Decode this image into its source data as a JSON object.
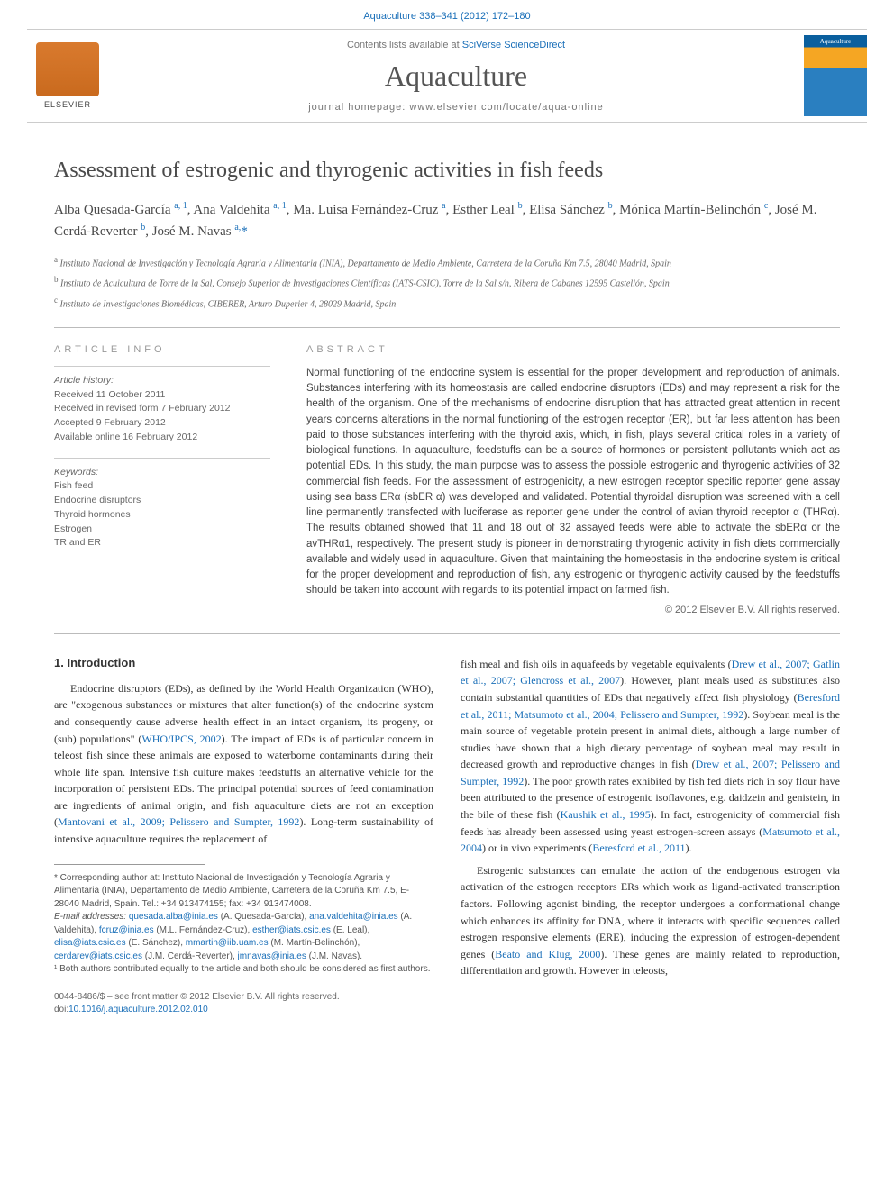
{
  "colors": {
    "link": "#1a6fb8",
    "text": "#333333",
    "muted": "#666666",
    "heading_gray": "#4a4a4a",
    "rule": "#bbbbbb",
    "background": "#ffffff",
    "elsevier_orange": "#d97a2e",
    "cover_blue": "#0a5f9e"
  },
  "page": {
    "citation": "Aquaculture 338–341 (2012) 172–180",
    "contents_prefix": "Contents lists available at ",
    "contents_link": "SciVerse ScienceDirect",
    "journal_name": "Aquaculture",
    "homepage_label": "journal homepage: www.elsevier.com/locate/aqua-online",
    "cover_label": "Aquaculture",
    "elsevier_label": "ELSEVIER"
  },
  "article": {
    "title": "Assessment of estrogenic and thyrogenic activities in fish feeds",
    "authors_html": "Alba Quesada-García <sup>a, 1</sup>, Ana Valdehita <sup>a, 1</sup>, Ma. Luisa Fernández-Cruz <sup>a</sup>, Esther Leal <sup>b</sup>, Elisa Sánchez <sup>b</sup>, Mónica Martín-Belinchón <sup>c</sup>, José M. Cerdá-Reverter <sup>b</sup>, José M. Navas <sup>a,</sup><span class='star'>*</span>",
    "affiliations": [
      {
        "sup": "a",
        "text": "Instituto Nacional de Investigación y Tecnología Agraria y Alimentaria (INIA), Departamento de Medio Ambiente, Carretera de la Coruña Km 7.5, 28040 Madrid, Spain"
      },
      {
        "sup": "b",
        "text": "Instituto de Acuicultura de Torre de la Sal, Consejo Superior de Investigaciones Científicas (IATS-CSIC), Torre de la Sal s/n, Ribera de Cabanes 12595 Castellón, Spain"
      },
      {
        "sup": "c",
        "text": "Instituto de Investigaciones Biomédicas, CIBERER, Arturo Duperier 4, 28029 Madrid, Spain"
      }
    ]
  },
  "info": {
    "heading": "ARTICLE INFO",
    "history_label": "Article history:",
    "history": [
      "Received 11 October 2011",
      "Received in revised form 7 February 2012",
      "Accepted 9 February 2012",
      "Available online 16 February 2012"
    ],
    "keywords_label": "Keywords:",
    "keywords": [
      "Fish feed",
      "Endocrine disruptors",
      "Thyroid hormones",
      "Estrogen",
      "TR and ER"
    ]
  },
  "abstract": {
    "heading": "ABSTRACT",
    "text": "Normal functioning of the endocrine system is essential for the proper development and reproduction of animals. Substances interfering with its homeostasis are called endocrine disruptors (EDs) and may represent a risk for the health of the organism. One of the mechanisms of endocrine disruption that has attracted great attention in recent years concerns alterations in the normal functioning of the estrogen receptor (ER), but far less attention has been paid to those substances interfering with the thyroid axis, which, in fish, plays several critical roles in a variety of biological functions. In aquaculture, feedstuffs can be a source of hormones or persistent pollutants which act as potential EDs. In this study, the main purpose was to assess the possible estrogenic and thyrogenic activities of 32 commercial fish feeds. For the assessment of estrogenicity, a new estrogen receptor specific reporter gene assay using sea bass ERα (sbER α) was developed and validated. Potential thyroidal disruption was screened with a cell line permanently transfected with luciferase as reporter gene under the control of avian thyroid receptor α (THRα). The results obtained showed that 11 and 18 out of 32 assayed feeds were able to activate the sbERα or the avTHRα1, respectively. The present study is pioneer in demonstrating thyrogenic activity in fish diets commercially available and widely used in aquaculture. Given that maintaining the homeostasis in the endocrine system is critical for the proper development and reproduction of fish, any estrogenic or thyrogenic activity caused by the feedstuffs should be taken into account with regards to its potential impact on farmed fish.",
    "copyright": "© 2012 Elsevier B.V. All rights reserved."
  },
  "body": {
    "section_heading": "1. Introduction",
    "left_para_html": "Endocrine disruptors (EDs), as defined by the World Health Organization (WHO), are \"exogenous substances or mixtures that alter function(s) of the endocrine system and consequently cause adverse health effect in an intact organism, its progeny, or (sub) populations\" (<a href='#'>WHO/IPCS, 2002</a>). The impact of EDs is of particular concern in teleost fish since these animals are exposed to waterborne contaminants during their whole life span. Intensive fish culture makes feedstuffs an alternative vehicle for the incorporation of persistent EDs. The principal potential sources of feed contamination are ingredients of animal origin, and fish aquaculture diets are not an exception (<a href='#'>Mantovani et al., 2009; Pelissero and Sumpter, 1992</a>). Long-term sustainability of intensive aquaculture requires the replacement of",
    "right_para1_html": "fish meal and fish oils in aquafeeds by vegetable equivalents (<a href='#'>Drew et al., 2007; Gatlin et al., 2007; Glencross et al., 2007</a>). However, plant meals used as substitutes also contain substantial quantities of EDs that negatively affect fish physiology (<a href='#'>Beresford et al., 2011; Matsumoto et al., 2004; Pelissero and Sumpter, 1992</a>). Soybean meal is the main source of vegetable protein present in animal diets, although a large number of studies have shown that a high dietary percentage of soybean meal may result in decreased growth and reproductive changes in fish (<a href='#'>Drew et al., 2007; Pelissero and Sumpter, 1992</a>). The poor growth rates exhibited by fish fed diets rich in soy flour have been attributed to the presence of estrogenic isoflavones, e.g. daidzein and genistein, in the bile of these fish (<a href='#'>Kaushik et al., 1995</a>). In fact, estrogenicity of commercial fish feeds has already been assessed using yeast estrogen-screen assays (<a href='#'>Matsumoto et al., 2004</a>) or in vivo experiments (<a href='#'>Beresford et al., 2011</a>).",
    "right_para2_html": "Estrogenic substances can emulate the action of the endogenous estrogen via activation of the estrogen receptors ERs which work as ligand-activated transcription factors. Following agonist binding, the receptor undergoes a conformational change which enhances its affinity for DNA, where it interacts with specific sequences called estrogen responsive elements (ERE), inducing the expression of estrogen-dependent genes (<a href='#'>Beato and Klug, 2000</a>). These genes are mainly related to reproduction, differentiation and growth. However in teleosts,"
  },
  "footnotes": {
    "corresponding_html": "* Corresponding author at: Instituto Nacional de Investigación y Tecnología Agraria y Alimentaria (INIA), Departamento de Medio Ambiente, Carretera de la Coruña Km 7.5, E-28040 Madrid, Spain. Tel.: +34 913474155; fax: +34 913474008.",
    "emails_label": "E-mail addresses:",
    "emails_html": "<a href='#'>quesada.alba@inia.es</a> (A. Quesada-García), <a href='#'>ana.valdehita@inia.es</a> (A. Valdehita), <a href='#'>fcruz@inia.es</a> (M.L. Fernández-Cruz), <a href='#'>esther@iats.csic.es</a> (E. Leal), <a href='#'>elisa@iats.csic.es</a> (E. Sánchez), <a href='#'>mmartin@iib.uam.es</a> (M. Martín-Belinchón), <a href='#'>cerdarev@iats.csic.es</a> (J.M. Cerdá-Reverter), <a href='#'>jmnavas@inia.es</a> (J.M. Navas).",
    "equal_contrib": "¹ Both authors contributed equally to the article and both should be considered as first authors."
  },
  "footer": {
    "front_matter": "0044-8486/$ – see front matter © 2012 Elsevier B.V. All rights reserved.",
    "doi_label": "doi:",
    "doi": "10.1016/j.aquaculture.2012.02.010"
  }
}
